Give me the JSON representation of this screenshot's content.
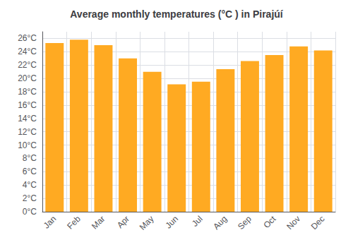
{
  "chart_data": {
    "type": "bar",
    "title": "Average monthly temperatures (°C ) in Pirajúí",
    "categories": [
      "Jan",
      "Feb",
      "Mar",
      "Apr",
      "May",
      "Jun",
      "Jul",
      "Aug",
      "Sep",
      "Oct",
      "Nov",
      "Dec"
    ],
    "values": [
      25.3,
      25.8,
      25.0,
      23.0,
      21.0,
      19.1,
      19.5,
      21.4,
      22.6,
      23.5,
      24.8,
      24.2
    ],
    "color": "#FFAA22",
    "ylim": [
      0,
      27
    ],
    "yticks": [
      {
        "value": 0,
        "label": "0°C"
      },
      {
        "value": 2,
        "label": "2°C"
      },
      {
        "value": 4,
        "label": "4°C"
      },
      {
        "value": 6,
        "label": "6°C"
      },
      {
        "value": 8,
        "label": "8°C"
      },
      {
        "value": 10,
        "label": "10°C"
      },
      {
        "value": 12,
        "label": "12°C"
      },
      {
        "value": 14,
        "label": "14°C"
      },
      {
        "value": 16,
        "label": "16°C"
      },
      {
        "value": 18,
        "label": "18°C"
      },
      {
        "value": 20,
        "label": "20°C"
      },
      {
        "value": 22,
        "label": "22°C"
      },
      {
        "value": 24,
        "label": "24°C"
      },
      {
        "value": 26,
        "label": "26°C"
      }
    ],
    "grid": true
  }
}
